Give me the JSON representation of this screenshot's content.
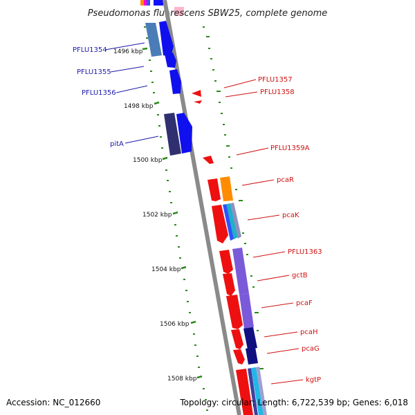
{
  "title": "Pseudomonas fluorescens SBW25, complete genome",
  "footer": {
    "accession": "Accession: NC_012660",
    "summary": "Topology: circular; Length: 6,722,539 bp; Genes: 6,018"
  },
  "colors": {
    "backbone": "#8a8a8a",
    "tick": "#2a8a1a",
    "label_left": "#1a1aa8",
    "label_right": "#d01010"
  },
  "ticks": [
    {
      "label": "1496 kbp"
    },
    {
      "label": "1498 kbp"
    },
    {
      "label": "1500 kbp"
    },
    {
      "label": "1502 kbp"
    },
    {
      "label": "1504 kbp"
    },
    {
      "label": "1506 kbp"
    },
    {
      "label": "1508 kbp"
    }
  ],
  "genes_left": [
    {
      "name": "PFLU1354"
    },
    {
      "name": "PFLU1355"
    },
    {
      "name": "PFLU1356"
    },
    {
      "name": "pitA"
    }
  ],
  "genes_right": [
    {
      "name": "PFLU1357"
    },
    {
      "name": "PFLU1358"
    },
    {
      "name": "PFLU1359A"
    },
    {
      "name": "pcaR"
    },
    {
      "name": "pcaK"
    },
    {
      "name": "PFLU1363"
    },
    {
      "name": "gctB"
    },
    {
      "name": "pcaF"
    },
    {
      "name": "pcaH"
    },
    {
      "name": "pcaG"
    },
    {
      "name": "kgtP"
    }
  ]
}
